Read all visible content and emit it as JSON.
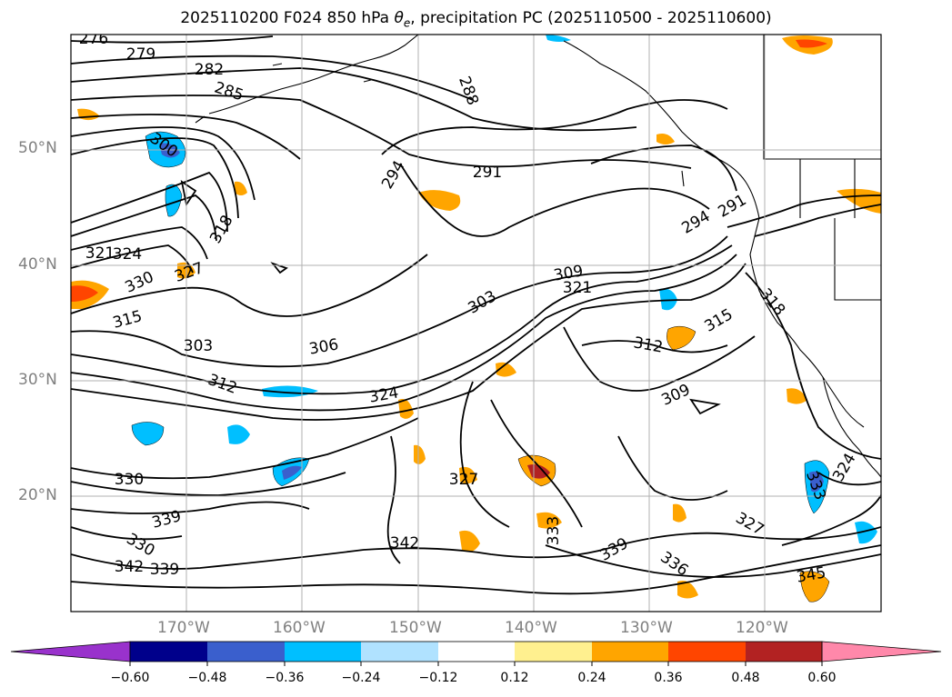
{
  "title_prefix": "2025110200 F024 850 hPa ",
  "title_symbol": "θ",
  "title_subscript": "e",
  "title_suffix": ", precipitation PC (2025110500 - 2025110600)",
  "map": {
    "lat_labels": [
      "50°N",
      "40°N",
      "30°N",
      "20°N"
    ],
    "lon_labels": [
      "170°W",
      "160°W",
      "150°W",
      "140°W",
      "130°W",
      "120°W"
    ],
    "contour_labels": [
      "276",
      "279",
      "282",
      "285",
      "288",
      "300",
      "294",
      "291",
      "318",
      "324",
      "321",
      "327",
      "330",
      "315",
      "303",
      "306",
      "312",
      "303",
      "309",
      "321",
      "294",
      "291",
      "318",
      "315",
      "312",
      "309",
      "324",
      "327",
      "330",
      "339",
      "330",
      "342",
      "339",
      "342",
      "333",
      "339",
      "336",
      "327",
      "345",
      "324",
      "333"
    ]
  },
  "colorbar": {
    "ticks": [
      "−0.60",
      "−0.48",
      "−0.36",
      "−0.24",
      "−0.12",
      "0.12",
      "0.24",
      "0.36",
      "0.48",
      "0.60"
    ],
    "colors": [
      "#9932cc",
      "#00008b",
      "#3a5fcd",
      "#00bfff",
      "#b0e2ff",
      "#ffffff",
      "#fff08f",
      "#ffa500",
      "#ff4500",
      "#b22222",
      "#ff88aa",
      "#ff88aa"
    ]
  }
}
